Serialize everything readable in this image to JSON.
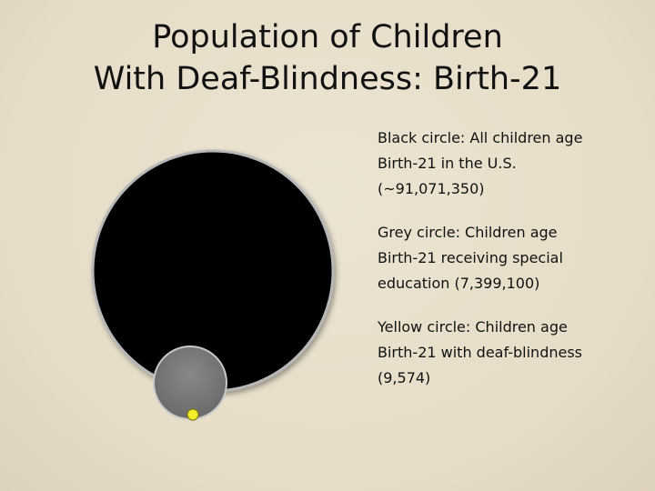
{
  "title": {
    "line1": "Population of Children",
    "line2": "With Deaf-Blindness: Birth-21"
  },
  "legend": [
    {
      "lines": [
        "Black circle: All children age",
        "Birth-21 in the U.S.",
        "(~91,071,350)"
      ],
      "color": "#000000"
    },
    {
      "lines": [
        "Grey circle: Children age",
        "Birth-21 receiving special",
        "education (7,399,100)"
      ],
      "color": "#7a7a7a"
    },
    {
      "lines": [
        "Yellow circle: Children age",
        "Birth-21 with deaf-blindness",
        "(9,574)"
      ],
      "color": "#f2ee2a"
    }
  ]
}
